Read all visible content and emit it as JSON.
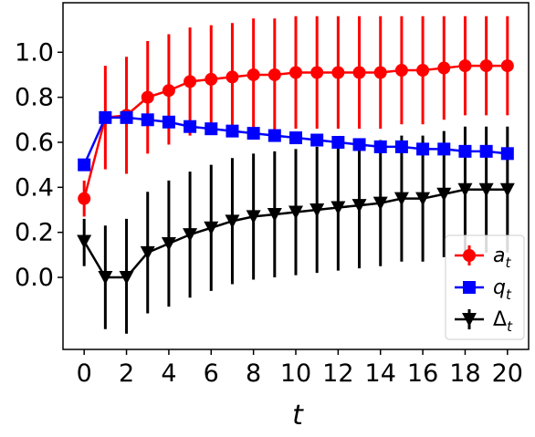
{
  "chart_data": {
    "type": "line",
    "xlabel": "t",
    "ylabel": "",
    "title": "",
    "xlim": [
      -1,
      21
    ],
    "ylim": [
      -0.32,
      1.22
    ],
    "x_ticks": [
      0,
      2,
      4,
      6,
      8,
      10,
      12,
      14,
      16,
      18,
      20
    ],
    "y_ticks": [
      0.0,
      0.2,
      0.4,
      0.6,
      0.8,
      1.0
    ],
    "x_tick_labels": [
      "0",
      "2",
      "4",
      "6",
      "8",
      "10",
      "12",
      "14",
      "16",
      "18",
      "20"
    ],
    "y_tick_labels": [
      "0.0",
      "0.2",
      "0.4",
      "0.6",
      "0.8",
      "1.0"
    ],
    "grid": false,
    "legend_position": "lower-right",
    "x": [
      0,
      1,
      2,
      3,
      4,
      5,
      6,
      7,
      8,
      9,
      10,
      11,
      12,
      13,
      14,
      15,
      16,
      17,
      18,
      19,
      20
    ],
    "series": [
      {
        "name": "a_t",
        "label_base": "a",
        "label_sub": "t",
        "color": "#ff0000",
        "marker": "circle",
        "values": [
          0.35,
          0.71,
          0.72,
          0.8,
          0.83,
          0.87,
          0.88,
          0.89,
          0.9,
          0.9,
          0.91,
          0.91,
          0.91,
          0.91,
          0.91,
          0.92,
          0.92,
          0.93,
          0.94,
          0.94,
          0.94
        ],
        "err_low": [
          0.27,
          0.48,
          0.46,
          0.55,
          0.59,
          0.63,
          0.64,
          0.65,
          0.65,
          0.65,
          0.66,
          0.66,
          0.66,
          0.66,
          0.66,
          0.68,
          0.68,
          0.7,
          0.72,
          0.72,
          0.72
        ],
        "err_high": [
          0.43,
          0.94,
          0.98,
          1.05,
          1.08,
          1.11,
          1.12,
          1.13,
          1.15,
          1.15,
          1.16,
          1.16,
          1.16,
          1.16,
          1.16,
          1.16,
          1.16,
          1.16,
          1.16,
          1.16,
          1.16
        ]
      },
      {
        "name": "q_t",
        "label_base": "q",
        "label_sub": "t",
        "color": "#0000ff",
        "marker": "square",
        "values": [
          0.5,
          0.71,
          0.71,
          0.7,
          0.69,
          0.67,
          0.66,
          0.65,
          0.64,
          0.63,
          0.62,
          0.61,
          0.6,
          0.59,
          0.58,
          0.58,
          0.57,
          0.57,
          0.56,
          0.56,
          0.55
        ],
        "err_low": [
          0.5,
          0.71,
          0.71,
          0.7,
          0.69,
          0.67,
          0.66,
          0.65,
          0.64,
          0.63,
          0.62,
          0.61,
          0.6,
          0.59,
          0.58,
          0.58,
          0.57,
          0.57,
          0.56,
          0.56,
          0.55
        ],
        "err_high": [
          0.5,
          0.71,
          0.71,
          0.7,
          0.69,
          0.67,
          0.66,
          0.65,
          0.64,
          0.63,
          0.62,
          0.61,
          0.6,
          0.59,
          0.58,
          0.58,
          0.57,
          0.57,
          0.56,
          0.56,
          0.55
        ]
      },
      {
        "name": "Δ_t",
        "label_base": "Δ",
        "label_sub": "t",
        "color": "#000000",
        "marker": "triangle-down",
        "values": [
          0.16,
          0.0,
          0.0,
          0.11,
          0.15,
          0.19,
          0.22,
          0.25,
          0.27,
          0.28,
          0.29,
          0.3,
          0.31,
          0.32,
          0.33,
          0.35,
          0.35,
          0.37,
          0.39,
          0.39,
          0.39
        ],
        "err_low": [
          0.05,
          -0.23,
          -0.25,
          -0.16,
          -0.13,
          -0.09,
          -0.06,
          -0.03,
          -0.01,
          0.0,
          0.01,
          0.02,
          0.03,
          0.04,
          0.05,
          0.07,
          0.07,
          0.09,
          0.11,
          0.11,
          0.11
        ],
        "err_high": [
          0.26,
          0.23,
          0.26,
          0.38,
          0.43,
          0.47,
          0.5,
          0.53,
          0.55,
          0.56,
          0.57,
          0.58,
          0.59,
          0.6,
          0.61,
          0.63,
          0.63,
          0.65,
          0.67,
          0.67,
          0.67
        ]
      }
    ]
  }
}
